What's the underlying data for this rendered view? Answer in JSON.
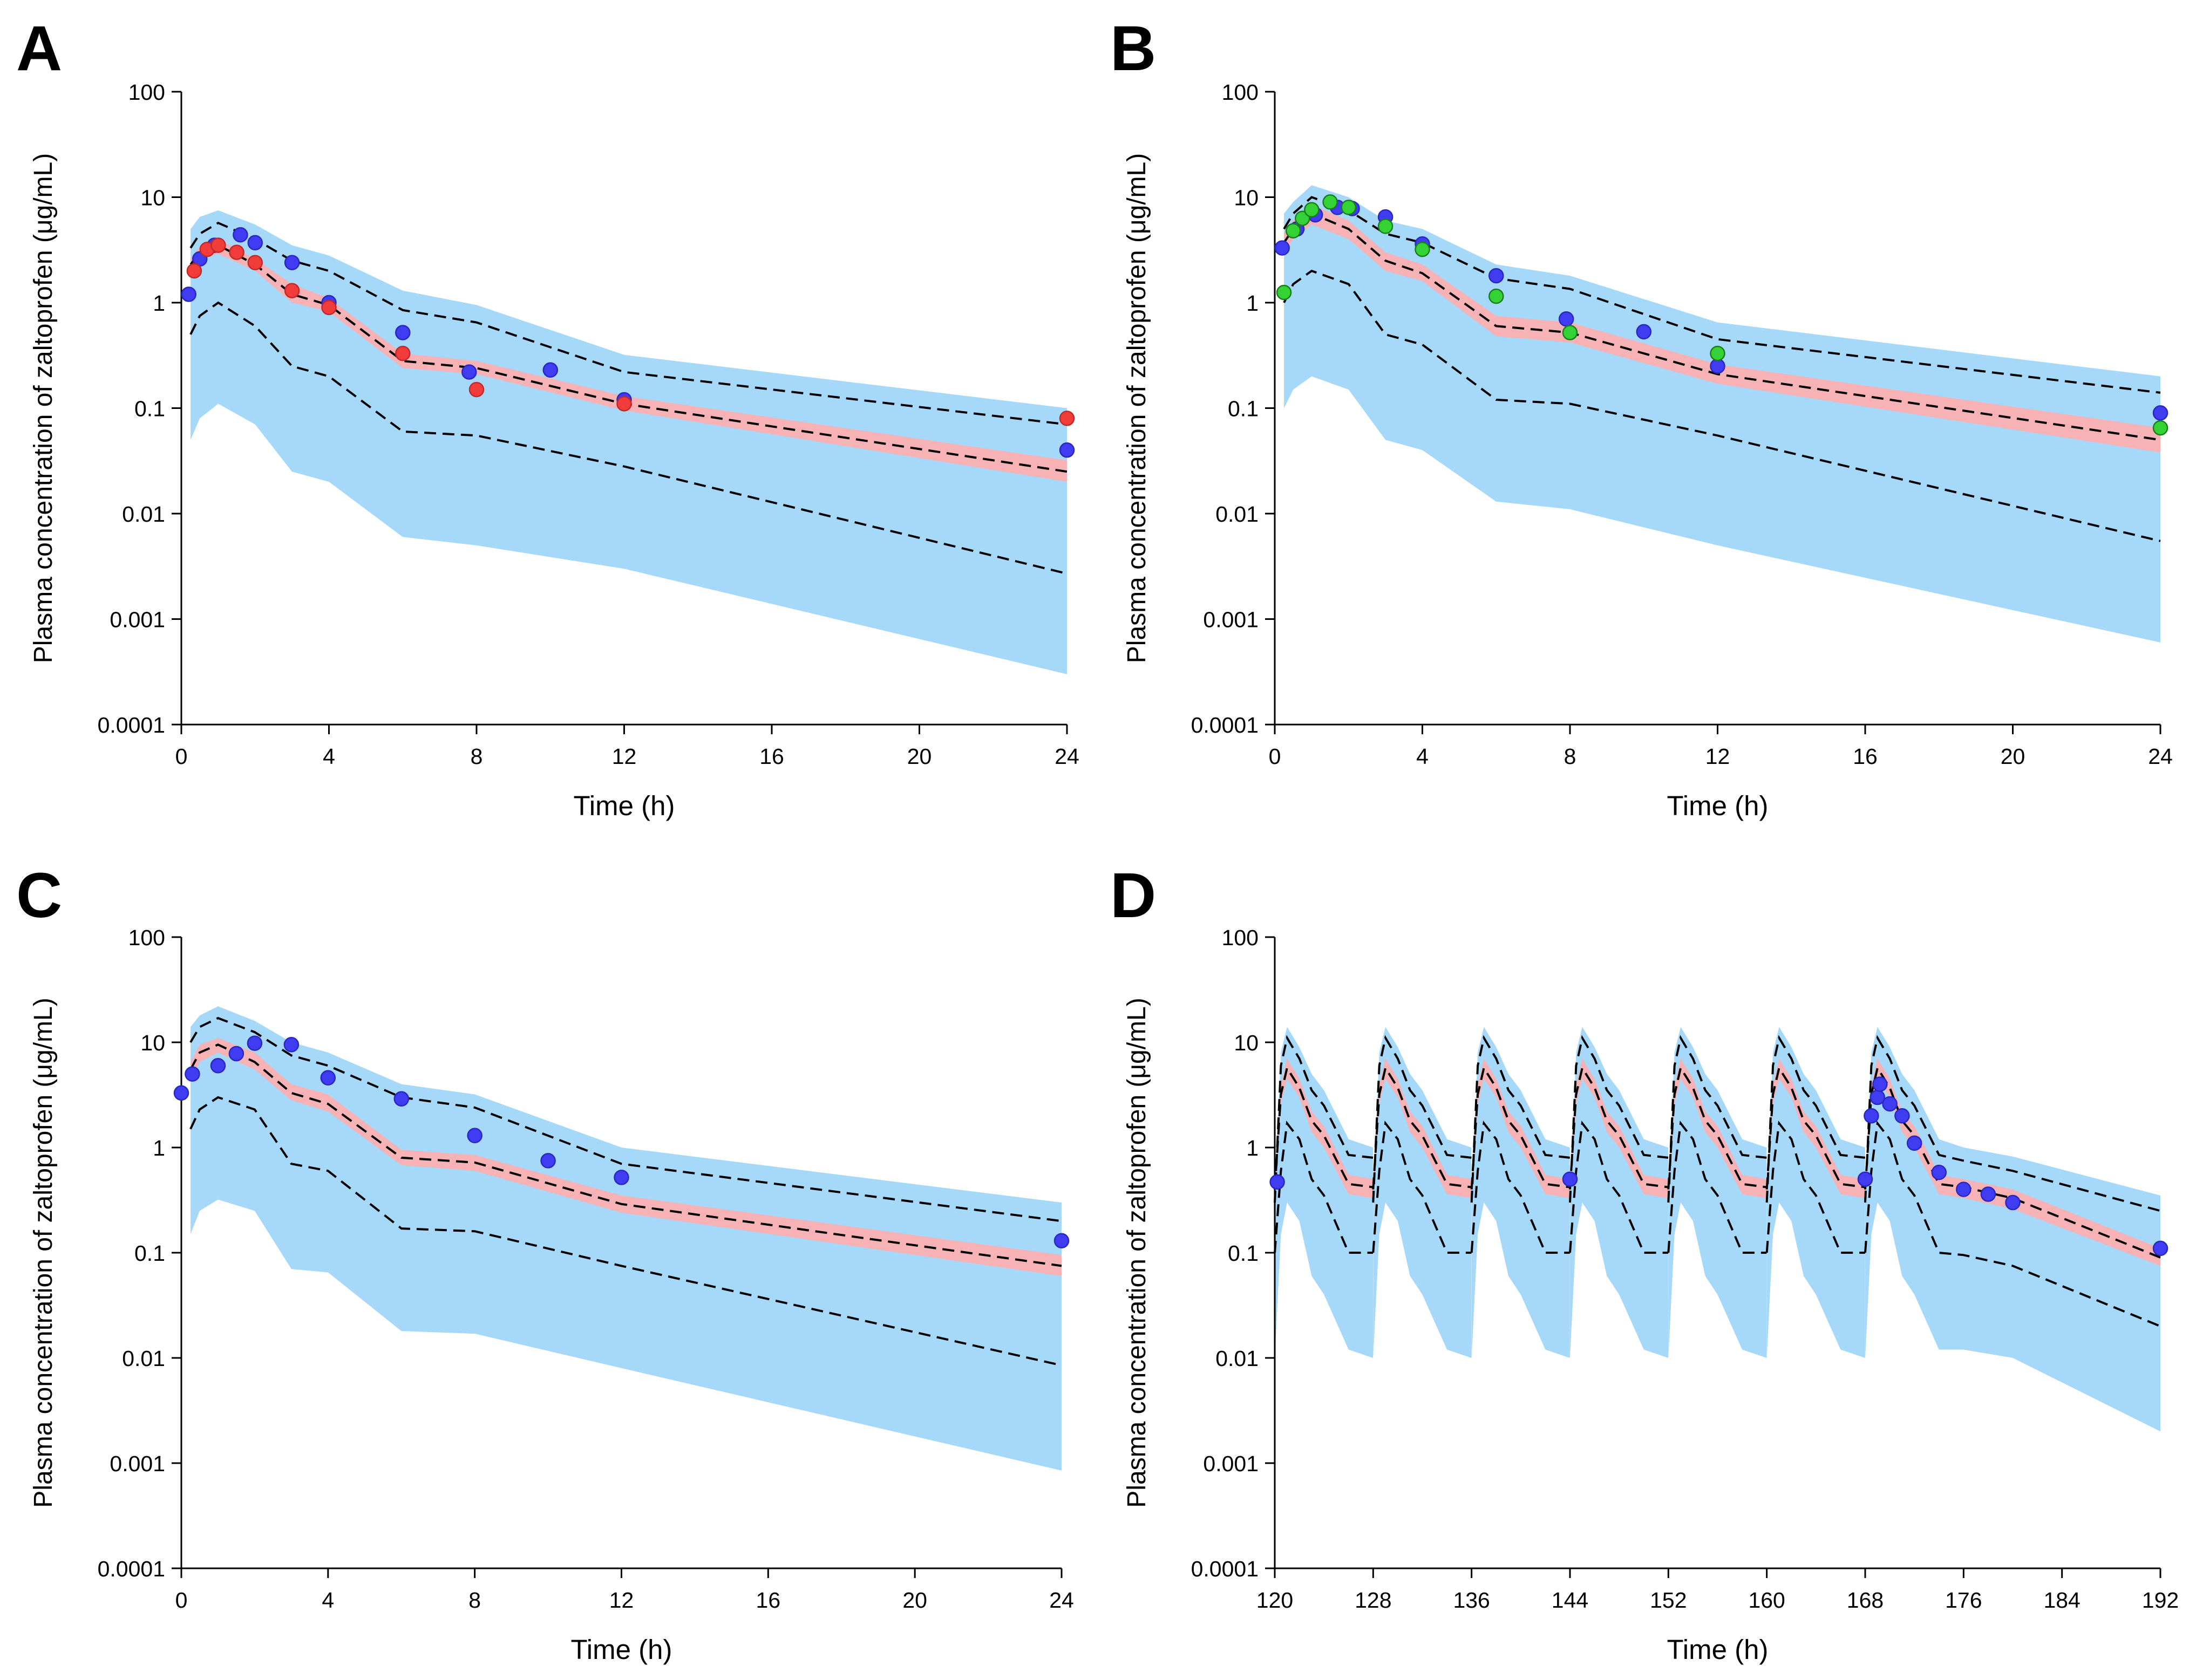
{
  "colors": {
    "outer_band": "#a6d8fa",
    "inner_band": "#f6b2b5",
    "line": "#000000",
    "obs_blue": "#3f3cf2",
    "obs_red": "#f23c3c",
    "obs_green": "#35d235",
    "edge_blue": "#2a28c0",
    "edge_red": "#c02a2a",
    "edge_green": "#1a7f1a"
  },
  "chart_data": [
    {
      "panel": "A",
      "type": "line",
      "xlabel": "Time (h)",
      "ylabel": "Plasma concentration of zaltoprofen (μg/mL)",
      "yscale": "log",
      "xlim": [
        0,
        24
      ],
      "ylim": [
        0.0001,
        100
      ],
      "xticks": [
        0,
        4,
        8,
        12,
        16,
        20,
        24
      ],
      "yticks": [
        0.0001,
        0.001,
        0.01,
        0.1,
        1,
        10,
        100
      ],
      "ytick_labels": [
        "0.0001",
        "0.001",
        "0.01",
        "0.1",
        "1",
        "10",
        "100"
      ],
      "x": [
        0.25,
        0.5,
        1,
        2,
        3,
        4,
        6,
        8,
        12,
        24
      ],
      "outer_upper": [
        5.0,
        6.5,
        7.5,
        5.5,
        3.5,
        2.8,
        1.3,
        0.95,
        0.32,
        0.1
      ],
      "outer_lower": [
        0.05,
        0.08,
        0.11,
        0.07,
        0.025,
        0.02,
        0.006,
        0.005,
        0.003,
        0.0003
      ],
      "p95": [
        3.3,
        4.5,
        5.7,
        4.0,
        2.5,
        2.0,
        0.85,
        0.65,
        0.22,
        0.07
      ],
      "p5": [
        0.5,
        0.75,
        1.0,
        0.6,
        0.25,
        0.2,
        0.06,
        0.055,
        0.028,
        0.0027
      ],
      "inner_upper": [
        2.6,
        3.4,
        4.0,
        2.6,
        1.5,
        1.1,
        0.33,
        0.28,
        0.13,
        0.032
      ],
      "inner_lower": [
        1.9,
        2.6,
        2.9,
        2.0,
        1.0,
        0.82,
        0.24,
        0.21,
        0.095,
        0.02
      ],
      "median": [
        2.3,
        3.0,
        3.5,
        2.3,
        1.2,
        0.95,
        0.28,
        0.24,
        0.11,
        0.025
      ],
      "observed": [
        {
          "color": "blue",
          "x": [
            0.2,
            0.5,
            0.9,
            1.6,
            2.0,
            3.0,
            4.0,
            6.0,
            7.8,
            10.0,
            12.0,
            24.0
          ],
          "y": [
            1.2,
            2.6,
            3.5,
            4.4,
            3.7,
            2.4,
            1.0,
            0.52,
            0.22,
            0.23,
            0.12,
            0.04
          ]
        },
        {
          "color": "red",
          "x": [
            0.35,
            0.7,
            1.0,
            1.5,
            2.0,
            3.0,
            4.0,
            6.0,
            8.0,
            12.0,
            24.0
          ],
          "y": [
            2.0,
            3.2,
            3.5,
            3.0,
            2.4,
            1.3,
            0.9,
            0.33,
            0.15,
            0.11,
            0.08
          ]
        }
      ]
    },
    {
      "panel": "B",
      "type": "line",
      "xlabel": "Time (h)",
      "ylabel": "Plasma concentration of zaltoprofen (μg/mL)",
      "yscale": "log",
      "xlim": [
        0,
        24
      ],
      "ylim": [
        0.0001,
        100
      ],
      "xticks": [
        0,
        4,
        8,
        12,
        16,
        20,
        24
      ],
      "yticks": [
        0.0001,
        0.001,
        0.01,
        0.1,
        1,
        10,
        100
      ],
      "ytick_labels": [
        "0.0001",
        "0.001",
        "0.01",
        "0.1",
        "1",
        "10",
        "100"
      ],
      "x": [
        0.25,
        0.5,
        1,
        2,
        3,
        4,
        6,
        8,
        12,
        24
      ],
      "outer_upper": [
        7.0,
        9.0,
        13.0,
        10.0,
        6.0,
        5.0,
        2.3,
        1.8,
        0.65,
        0.2
      ],
      "outer_lower": [
        0.1,
        0.15,
        0.2,
        0.15,
        0.05,
        0.04,
        0.013,
        0.011,
        0.005,
        0.0006
      ],
      "p95": [
        5.0,
        7.0,
        10.0,
        7.5,
        4.5,
        3.7,
        1.7,
        1.35,
        0.45,
        0.14
      ],
      "p5": [
        1.0,
        1.5,
        2.0,
        1.5,
        0.5,
        0.4,
        0.12,
        0.11,
        0.055,
        0.0055
      ],
      "inner_upper": [
        4.5,
        6.0,
        8.5,
        6.0,
        3.0,
        2.3,
        0.75,
        0.65,
        0.26,
        0.065
      ],
      "inner_lower": [
        3.0,
        4.0,
        5.5,
        4.0,
        2.0,
        1.6,
        0.48,
        0.42,
        0.17,
        0.038
      ],
      "median": [
        3.7,
        5.0,
        7.0,
        5.0,
        2.5,
        1.9,
        0.6,
        0.52,
        0.21,
        0.05
      ],
      "observed": [
        {
          "color": "blue",
          "x": [
            0.2,
            0.6,
            1.1,
            1.7,
            2.1,
            3.0,
            4.0,
            6.0,
            7.9,
            10.0,
            12.0,
            24.0
          ],
          "y": [
            3.3,
            5.0,
            6.8,
            8.0,
            7.8,
            6.5,
            3.6,
            1.8,
            0.7,
            0.53,
            0.25,
            0.09
          ]
        },
        {
          "color": "green",
          "x": [
            0.25,
            0.5,
            0.75,
            1.0,
            1.5,
            2.0,
            3.0,
            4.0,
            6.0,
            8.0,
            12.0,
            24.0
          ],
          "y": [
            1.25,
            4.8,
            6.3,
            7.6,
            9.0,
            8.0,
            5.3,
            3.2,
            1.15,
            0.52,
            0.33,
            0.065
          ]
        }
      ]
    },
    {
      "panel": "C",
      "type": "line",
      "xlabel": "Time (h)",
      "ylabel": "Plasma concentration of zaltoprofen (μg/mL)",
      "yscale": "log",
      "xlim": [
        0,
        24
      ],
      "ylim": [
        0.0001,
        100
      ],
      "xticks": [
        0,
        4,
        8,
        12,
        16,
        20,
        24
      ],
      "yticks": [
        0.0001,
        0.001,
        0.01,
        0.1,
        1,
        10,
        100
      ],
      "ytick_labels": [
        "0.0001",
        "0.001",
        "0.01",
        "0.1",
        "1",
        "10",
        "100"
      ],
      "x": [
        0.25,
        0.5,
        1,
        2,
        3,
        4,
        6,
        8,
        12,
        24
      ],
      "outer_upper": [
        14.0,
        18.0,
        22.0,
        16.0,
        10.0,
        8.0,
        4.0,
        3.2,
        1.0,
        0.3
      ],
      "outer_lower": [
        0.15,
        0.25,
        0.32,
        0.25,
        0.07,
        0.065,
        0.018,
        0.017,
        0.008,
        0.00085
      ],
      "p95": [
        10.0,
        14.0,
        17.0,
        12.5,
        7.5,
        6.0,
        3.0,
        2.4,
        0.7,
        0.2
      ],
      "p5": [
        1.5,
        2.3,
        3.0,
        2.3,
        0.7,
        0.6,
        0.17,
        0.16,
        0.075,
        0.0085
      ],
      "inner_upper": [
        6.5,
        9.5,
        11.0,
        8.0,
        4.0,
        3.2,
        0.95,
        0.85,
        0.35,
        0.095
      ],
      "inner_lower": [
        4.5,
        6.5,
        8.0,
        5.5,
        2.8,
        2.2,
        0.68,
        0.6,
        0.24,
        0.06
      ],
      "median": [
        5.5,
        8.0,
        9.5,
        6.5,
        3.3,
        2.6,
        0.8,
        0.72,
        0.29,
        0.075
      ],
      "observed": [
        {
          "color": "blue",
          "x": [
            0.0,
            0.3,
            1.0,
            1.5,
            2.0,
            3.0,
            4.0,
            6.0,
            8.0,
            10.0,
            12.0,
            24.0
          ],
          "y": [
            3.3,
            5.0,
            6.0,
            7.8,
            9.8,
            9.5,
            4.6,
            2.9,
            1.3,
            0.75,
            0.52,
            0.13
          ]
        }
      ]
    },
    {
      "panel": "D",
      "type": "line",
      "xlabel": "Time (h)",
      "ylabel": "Plasma concentration of zaltoprofen (μg/mL)",
      "yscale": "log",
      "xlim": [
        120,
        192
      ],
      "ylim": [
        0.0001,
        100
      ],
      "xticks": [
        120,
        128,
        136,
        144,
        152,
        160,
        168,
        176,
        184,
        192
      ],
      "yticks": [
        0.0001,
        0.001,
        0.01,
        0.1,
        1,
        10,
        100
      ],
      "ytick_labels": [
        "0.0001",
        "0.001",
        "0.01",
        "0.1",
        "1",
        "10",
        "100"
      ],
      "dose_times": [
        120,
        128,
        136,
        144,
        152,
        160,
        168
      ],
      "cycle_offsets": [
        0,
        0.5,
        1,
        2,
        3,
        4,
        6,
        7.99
      ],
      "cycle_outer_upper": [
        0.35,
        8.0,
        14.0,
        9.0,
        5.0,
        3.5,
        1.2,
        1.0
      ],
      "cycle_outer_lower": [
        0.01,
        0.15,
        0.3,
        0.2,
        0.06,
        0.04,
        0.012,
        0.01
      ],
      "cycle_p95": [
        0.3,
        6.0,
        11.0,
        7.0,
        3.5,
        2.5,
        0.85,
        0.8
      ],
      "cycle_p5": [
        0.1,
        0.6,
        1.7,
        1.2,
        0.5,
        0.35,
        0.1,
        0.1
      ],
      "cycle_inner_upper": [
        0.5,
        4.0,
        7.0,
        4.5,
        2.2,
        1.6,
        0.55,
        0.5
      ],
      "cycle_inner_lower": [
        0.3,
        2.6,
        4.5,
        3.0,
        1.4,
        1.0,
        0.36,
        0.33
      ],
      "cycle_median": [
        0.4,
        3.2,
        5.7,
        3.7,
        1.8,
        1.3,
        0.45,
        0.42
      ],
      "tail_x": [
        174,
        176,
        180,
        192
      ],
      "tail_outer_upper": [
        1.2,
        1.0,
        0.82,
        0.35
      ],
      "tail_outer_lower": [
        0.012,
        0.012,
        0.01,
        0.002
      ],
      "tail_p95": [
        0.85,
        0.75,
        0.6,
        0.25
      ],
      "tail_p5": [
        0.1,
        0.095,
        0.075,
        0.02
      ],
      "tail_inner_upper": [
        0.55,
        0.5,
        0.4,
        0.11
      ],
      "tail_inner_lower": [
        0.36,
        0.33,
        0.26,
        0.075
      ],
      "tail_median": [
        0.45,
        0.42,
        0.33,
        0.09
      ],
      "observed": [
        {
          "color": "blue",
          "x": [
            120.2,
            144.0,
            168.0,
            168.5,
            169.0,
            169.2,
            170.0,
            171.0,
            172.0,
            174.0,
            176.0,
            178.0,
            180.0,
            192.0
          ],
          "y": [
            0.47,
            0.5,
            0.5,
            2.0,
            3.0,
            4.0,
            2.6,
            2.0,
            1.1,
            0.58,
            0.4,
            0.36,
            0.3,
            0.11
          ]
        }
      ]
    }
  ]
}
